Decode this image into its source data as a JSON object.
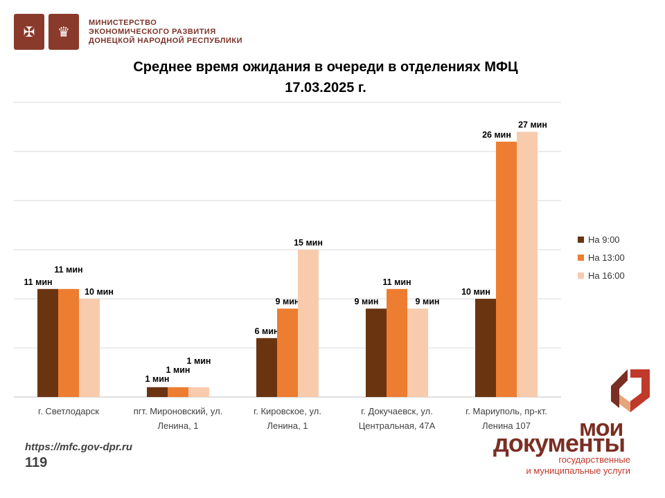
{
  "header": {
    "ministry_lines": [
      "МИНИСТЕРСТВО",
      "ЭКОНОМИЧЕСКОГО РАЗВИТИЯ",
      "ДОНЕЦКОЙ НАРОДНОЙ РЕСПУБЛИКИ"
    ]
  },
  "colors": {
    "series_1": "#6b3410",
    "series_2": "#ed7d31",
    "series_3": "#f8cbad",
    "gridline": "#d9d9d9",
    "brand": "#7a2f24",
    "brand_accent": "#c0392b"
  },
  "chart_data": {
    "type": "bar",
    "title": "Среднее время ожидания в очереди в отделениях МФЦ",
    "subtitle": "17.03.2025 г.",
    "categories": [
      [
        "г. Светлодарск"
      ],
      [
        "пгт. Мироновский, ул.",
        "Ленина, 1"
      ],
      [
        "г. Кировское, ул.",
        "Ленина, 1"
      ],
      [
        "г. Докучаевск, ул.",
        "Центральная, 47А"
      ],
      [
        "г. Мариуполь, пр-кт.",
        "Ленина 107"
      ]
    ],
    "series": [
      {
        "name": "На 9:00",
        "values": [
          11,
          1,
          6,
          9,
          10
        ]
      },
      {
        "name": "На 13:00",
        "values": [
          11,
          1,
          9,
          11,
          26
        ]
      },
      {
        "name": "На 16:00",
        "values": [
          10,
          1,
          15,
          9,
          27
        ]
      }
    ],
    "data_label_suffix": " мин",
    "ylim": [
      0,
      30
    ],
    "grid": true,
    "legend_position": "right"
  },
  "footer": {
    "url": "https://mfc.gov-dpr.ru",
    "number": "119"
  },
  "brand": {
    "line1": "мои",
    "line2": "документы",
    "tag1": "государственные",
    "tag2": "и муниципальные услуги"
  }
}
